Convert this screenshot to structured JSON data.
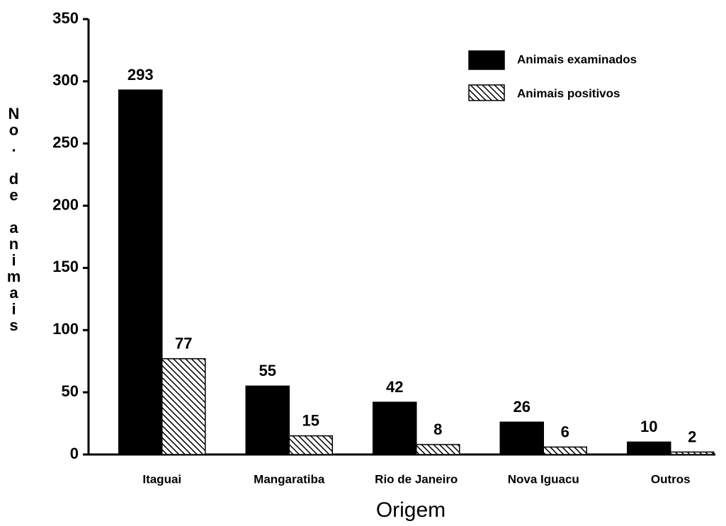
{
  "chart_data": {
    "type": "bar",
    "categories": [
      "Itaguai",
      "Mangaratiba",
      "Rio de Janeiro",
      "Nova Iguacu",
      "Outros"
    ],
    "series": [
      {
        "name": "Animais examinados",
        "color": "#000000",
        "pattern": "solid",
        "values": [
          293,
          55,
          42,
          26,
          10
        ]
      },
      {
        "name": "Animais positivos",
        "color": "#000000",
        "pattern": "hatch",
        "values": [
          77,
          15,
          8,
          6,
          2
        ]
      }
    ],
    "xlabel": "Origem",
    "ylabel": "No. de animais",
    "ylim": [
      0,
      350
    ],
    "yticks": [
      0,
      50,
      100,
      150,
      200,
      250,
      300,
      350
    ],
    "legend": "upper right",
    "grid": false
  }
}
